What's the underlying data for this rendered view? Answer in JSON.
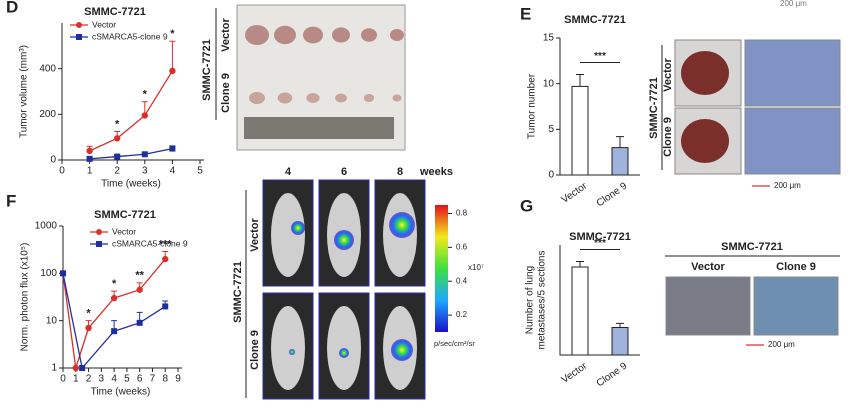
{
  "chart_data": [
    {
      "panel": "D",
      "type": "line",
      "title": "SMMC-7721",
      "x_label": "Time (weeks)",
      "y_label": "Tumor volume (mm³)",
      "xlim": [
        0,
        5
      ],
      "xticks": [
        0,
        1,
        2,
        3,
        4,
        5
      ],
      "ylim": [
        0,
        600
      ],
      "yticks": [
        0,
        200,
        400
      ],
      "series": [
        {
          "name": "Vector",
          "color": "#d9302c",
          "marker": "circle",
          "x": [
            1,
            2,
            3,
            4
          ],
          "values": [
            40,
            95,
            195,
            390
          ],
          "errors": [
            20,
            30,
            60,
            130
          ]
        },
        {
          "name": "cSMARCA5-clone 9",
          "color": "#1f2fa0",
          "marker": "square",
          "x": [
            1,
            2,
            3,
            4
          ],
          "values": [
            5,
            15,
            25,
            50
          ],
          "errors": [
            3,
            5,
            6,
            12
          ]
        }
      ],
      "annotations": [
        {
          "x": 2,
          "text": "*"
        },
        {
          "x": 3,
          "text": "*"
        },
        {
          "x": 4,
          "text": "*"
        }
      ]
    },
    {
      "panel": "E",
      "type": "bar",
      "title": "SMMC-7721",
      "y_label": "Tumor number",
      "categories": [
        "Vector",
        "Clone 9"
      ],
      "values": [
        9.7,
        3.0
      ],
      "errors": [
        1.3,
        1.2
      ],
      "colors": [
        "#ffffff",
        "#9fb3dc"
      ],
      "ylim": [
        0,
        15
      ],
      "yticks": [
        0,
        5,
        10,
        15
      ],
      "significance": "***"
    },
    {
      "panel": "F",
      "type": "line",
      "y_scale": "log",
      "title": "SMMC-7721",
      "x_label": "Time (weeks)",
      "y_label": "Norm. photon flux (x10⁵)",
      "xlim": [
        0,
        9
      ],
      "xticks": [
        0,
        1,
        2,
        3,
        4,
        5,
        6,
        7,
        8,
        9
      ],
      "ylim": [
        1,
        1000
      ],
      "yticks": [
        1,
        10,
        100,
        1000
      ],
      "series": [
        {
          "name": "Vector",
          "color": "#d9302c",
          "marker": "circle",
          "x": [
            0,
            1,
            2,
            4,
            6,
            8
          ],
          "values": [
            100,
            1,
            7,
            30,
            45,
            200
          ],
          "errors": [
            0,
            0,
            3,
            12,
            18,
            90
          ]
        },
        {
          "name": "cSMARCA5-clone 9",
          "color": "#1f2fa0",
          "marker": "square",
          "x": [
            0,
            1.5,
            4,
            6,
            8
          ],
          "values": [
            100,
            1,
            6,
            9,
            20
          ],
          "errors": [
            0,
            0,
            4,
            6,
            6
          ]
        }
      ],
      "annotations": [
        {
          "x": 2,
          "text": "*"
        },
        {
          "x": 4,
          "text": "*"
        },
        {
          "x": 6,
          "text": "**"
        },
        {
          "x": 8,
          "text": "***"
        }
      ]
    },
    {
      "panel": "G",
      "type": "bar",
      "title": "SMMC-7721",
      "y_label": [
        "Number of lung",
        "metastases/5 sections"
      ],
      "categories": [
        "Vector",
        "Clone 9"
      ],
      "values": [
        6.4,
        2.0
      ],
      "errors": [
        0.4,
        0.3
      ],
      "colors": [
        "#ffffff",
        "#9fb3dc"
      ],
      "ylim": [
        0,
        8
      ],
      "significance": "***"
    }
  ],
  "figure": {
    "top_scale": "200 μm",
    "D": {
      "cell_line": "SMMC-7721",
      "rows": [
        "Vector",
        "Clone 9"
      ]
    },
    "E": {
      "cell_line": "SMMC-7721",
      "rows": [
        "Vector",
        "Clone 9"
      ],
      "scale": "200 μm"
    },
    "F": {
      "weeks": [
        "4",
        "6",
        "8"
      ],
      "weeks_label": "weeks",
      "cell_line": "SMMC-7721",
      "rows": [
        "Vector",
        "Clone 9"
      ],
      "colorbar": {
        "lim": [
          0.1,
          0.85
        ],
        "ticks": [
          0.8,
          0.6,
          0.4,
          0.2
        ],
        "multiplier": "x10⁷",
        "unit": "p/sec/cm²/sr"
      }
    },
    "G": {
      "title": "SMMC-7721",
      "columns": [
        "Vector",
        "Clone 9"
      ],
      "scale": "200 μm"
    }
  }
}
